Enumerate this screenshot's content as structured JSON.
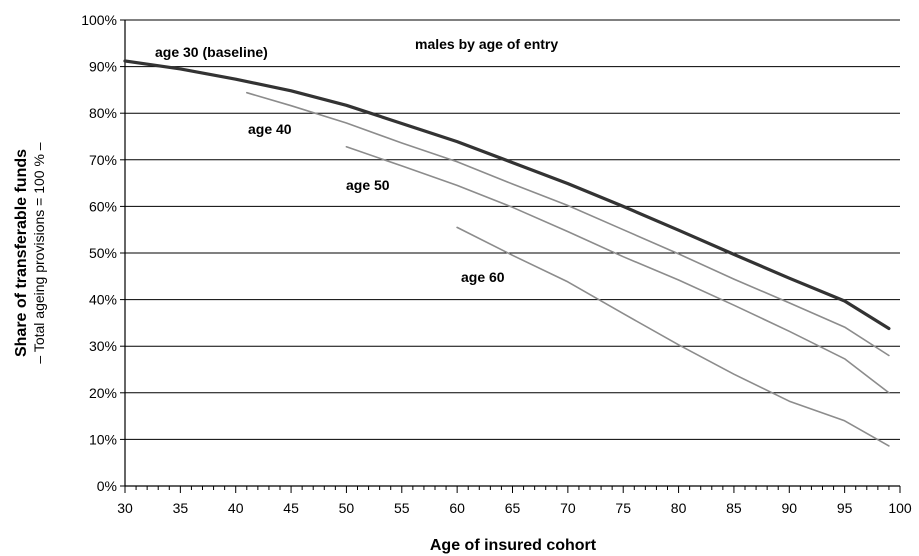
{
  "chart_data": {
    "type": "line",
    "title": "",
    "subtitle": "males by age of entry",
    "xlabel": "Age of insured cohort",
    "ylabel": "Share of transferable funds",
    "ylabel_sub": "– Total ageing provisions = 100 % –",
    "xlim": [
      30,
      100
    ],
    "ylim": [
      0,
      100
    ],
    "x_ticks": [
      "30",
      "35",
      "40",
      "45",
      "50",
      "55",
      "60",
      "65",
      "70",
      "75",
      "80",
      "85",
      "90",
      "95",
      "100"
    ],
    "y_ticks": [
      "0%",
      "10%",
      "20%",
      "30%",
      "40%",
      "50%",
      "60%",
      "70%",
      "80%",
      "90%",
      "100%"
    ],
    "grid": true,
    "legend": "none",
    "series": [
      {
        "name": "age 30 (baseline)",
        "color": "#333333",
        "emphasis": true,
        "points": [
          [
            30,
            91.2
          ],
          [
            35,
            89.5
          ],
          [
            40,
            87.3
          ],
          [
            45,
            84.8
          ],
          [
            50,
            81.7
          ],
          [
            55,
            77.8
          ],
          [
            60,
            73.9
          ],
          [
            65,
            69.4
          ],
          [
            70,
            64.9
          ],
          [
            75,
            60.0
          ],
          [
            80,
            54.9
          ],
          [
            85,
            49.7
          ],
          [
            90,
            44.6
          ],
          [
            95,
            39.7
          ],
          [
            99,
            33.8
          ]
        ]
      },
      {
        "name": "age 40",
        "color": "#8c8c8c",
        "emphasis": false,
        "points": [
          [
            41,
            84.4
          ],
          [
            45,
            81.6
          ],
          [
            50,
            77.9
          ],
          [
            55,
            73.6
          ],
          [
            60,
            69.6
          ],
          [
            65,
            64.8
          ],
          [
            70,
            60.2
          ],
          [
            75,
            55.0
          ],
          [
            80,
            49.8
          ],
          [
            85,
            44.4
          ],
          [
            90,
            39.3
          ],
          [
            95,
            34.1
          ],
          [
            99,
            28.0
          ]
        ]
      },
      {
        "name": "age 50",
        "color": "#8c8c8c",
        "emphasis": false,
        "points": [
          [
            50,
            72.8
          ],
          [
            55,
            68.7
          ],
          [
            60,
            64.5
          ],
          [
            65,
            59.8
          ],
          [
            70,
            54.6
          ],
          [
            75,
            49.2
          ],
          [
            80,
            44.2
          ],
          [
            85,
            38.8
          ],
          [
            90,
            33.2
          ],
          [
            95,
            27.3
          ],
          [
            99,
            20.0
          ]
        ]
      },
      {
        "name": "age 60",
        "color": "#8c8c8c",
        "emphasis": false,
        "points": [
          [
            60,
            55.5
          ],
          [
            65,
            49.5
          ],
          [
            70,
            43.8
          ],
          [
            75,
            37.0
          ],
          [
            80,
            30.3
          ],
          [
            85,
            24.0
          ],
          [
            90,
            18.2
          ],
          [
            95,
            14.0
          ],
          [
            99,
            8.6
          ]
        ]
      }
    ]
  }
}
